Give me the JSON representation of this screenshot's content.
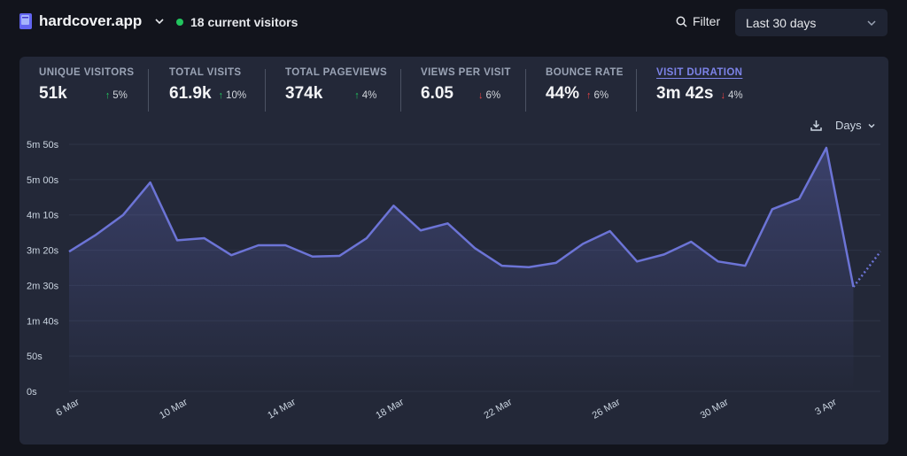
{
  "header": {
    "site_name": "hardcover.app",
    "visitors_text": "18 current visitors",
    "filter_label": "Filter",
    "date_range": "Last 30 days"
  },
  "metrics": [
    {
      "label": "UNIQUE VISITORS",
      "value": "51k",
      "change": "5%",
      "direction": "up"
    },
    {
      "label": "TOTAL VISITS",
      "value": "61.9k",
      "change": "10%",
      "direction": "up"
    },
    {
      "label": "TOTAL PAGEVIEWS",
      "value": "374k",
      "change": "4%",
      "direction": "up"
    },
    {
      "label": "VIEWS PER VISIT",
      "value": "6.05",
      "change": "6%",
      "direction": "down"
    },
    {
      "label": "BOUNCE RATE",
      "value": "44%",
      "change": "6%",
      "direction": "up"
    },
    {
      "label": "VISIT DURATION",
      "value": "3m 42s",
      "change": "4%",
      "direction": "down",
      "active": true
    }
  ],
  "chart_controls": {
    "interval_label": "Days",
    "download_icon": "download-icon"
  },
  "chart_data": {
    "type": "area",
    "xlabel": "",
    "ylabel": "",
    "y_ticks": [
      "0s",
      "50s",
      "1m 40s",
      "2m 30s",
      "3m 20s",
      "4m 10s",
      "5m 00s",
      "5m 50s"
    ],
    "y_tick_values": [
      0,
      50,
      100,
      150,
      200,
      250,
      300,
      350
    ],
    "ylim": [
      0,
      350
    ],
    "x_tick_labels": [
      "6 Mar",
      "10 Mar",
      "14 Mar",
      "18 Mar",
      "22 Mar",
      "26 Mar",
      "30 Mar",
      "3 Apr"
    ],
    "x": [
      "6 Mar",
      "7 Mar",
      "8 Mar",
      "9 Mar",
      "10 Mar",
      "11 Mar",
      "12 Mar",
      "13 Mar",
      "14 Mar",
      "15 Mar",
      "16 Mar",
      "17 Mar",
      "18 Mar",
      "19 Mar",
      "20 Mar",
      "21 Mar",
      "22 Mar",
      "23 Mar",
      "24 Mar",
      "25 Mar",
      "26 Mar",
      "27 Mar",
      "28 Mar",
      "29 Mar",
      "30 Mar",
      "31 Mar",
      "1 Apr",
      "2 Apr",
      "3 Apr",
      "4 Apr",
      "5 Apr"
    ],
    "series": [
      {
        "values": [
          198,
          222,
          250,
          296,
          214,
          217,
          193,
          207,
          207,
          191,
          192,
          217,
          263,
          228,
          238,
          203,
          178,
          176,
          182,
          209,
          227,
          184,
          194,
          212,
          184,
          178,
          258,
          273,
          345,
          148,
          198
        ],
        "color": "#6c74d6",
        "dotted_from_index": 29
      }
    ],
    "grid": true
  }
}
